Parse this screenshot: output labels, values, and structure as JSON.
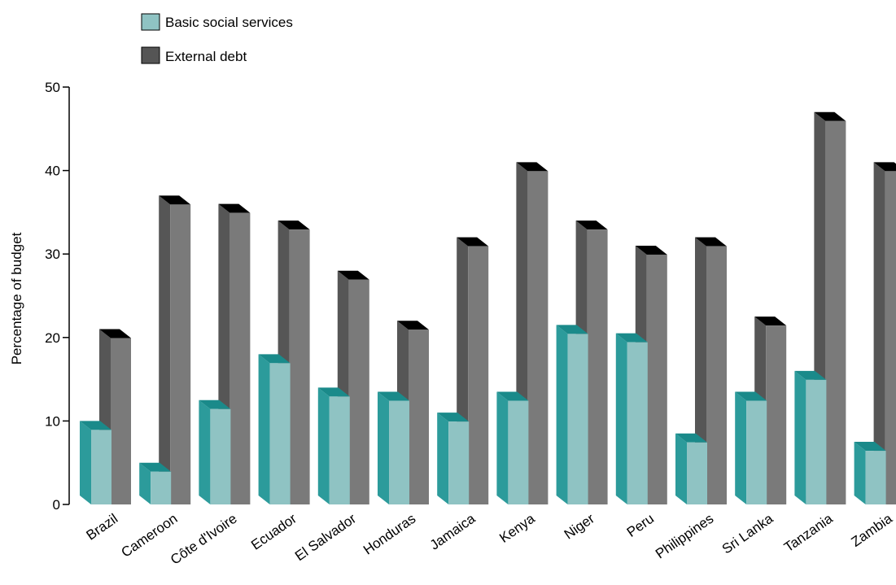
{
  "chart_data": {
    "type": "bar",
    "title": "",
    "xlabel": "",
    "ylabel": "Percentage of budget",
    "ylim": [
      0,
      50
    ],
    "yticks": [
      0,
      10,
      20,
      30,
      40,
      50
    ],
    "categories": [
      "Brazil",
      "Cameroon",
      "Côte d'Ivoire",
      "Ecuador",
      "El Salvador",
      "Honduras",
      "Jamaica",
      "Kenya",
      "Niger",
      "Peru",
      "Philippines",
      "Sri Lanka",
      "Tanzania",
      "Zambia"
    ],
    "series": [
      {
        "name": "Basic social services",
        "values": [
          10,
          5,
          12.5,
          18,
          14,
          13.5,
          11,
          13.5,
          21.5,
          20.5,
          8.5,
          13.5,
          16,
          7.5
        ]
      },
      {
        "name": "External debt",
        "values": [
          21,
          37,
          36,
          34,
          28,
          22,
          32,
          41,
          34,
          31,
          32,
          22.5,
          47,
          41
        ]
      }
    ],
    "legend_position": "top-left",
    "grid": false,
    "colors": {
      "social_front": "#8fc3c3",
      "social_side": "#2c9b9b",
      "social_top": "#1a8a8a",
      "debt_front": "#7a7a7a",
      "debt_side": "#565656",
      "debt_top": "#000000",
      "legend_social": "#8fc3c3",
      "legend_debt": "#555555"
    }
  }
}
